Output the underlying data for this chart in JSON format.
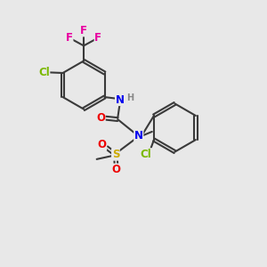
{
  "background_color": "#e8e8e8",
  "bond_color": "#3a3a3a",
  "bond_width": 1.5,
  "atom_colors": {
    "F": "#e800a0",
    "Cl": "#7ab800",
    "N": "#0000ee",
    "O": "#ee0000",
    "S": "#ccaa00",
    "H": "#888888",
    "C": "#3a3a3a"
  },
  "font_size_atom": 8.5,
  "font_size_small": 7.0
}
